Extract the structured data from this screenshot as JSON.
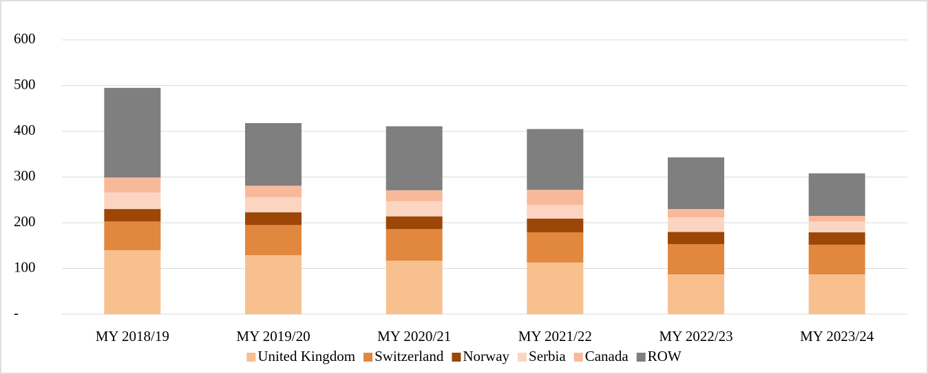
{
  "chart_data": {
    "type": "stacked_bar",
    "categories": [
      "MY 2018/19",
      "MY 2019/20",
      "MY 2020/21",
      "MY 2021/22",
      "MY 2022/23",
      "MY 2023/24"
    ],
    "series": [
      {
        "name": "United Kingdom",
        "color": "#f9c08f",
        "values": [
          140,
          129,
          117,
          113,
          87,
          87
        ]
      },
      {
        "name": "Switzerland",
        "color": "#e2873e",
        "values": [
          63,
          66,
          69,
          66,
          66,
          65
        ]
      },
      {
        "name": "Norway",
        "color": "#9c4708",
        "values": [
          27,
          28,
          28,
          30,
          27,
          27
        ]
      },
      {
        "name": "Serbia",
        "color": "#fbd5c1",
        "values": [
          36,
          33,
          33,
          30,
          32,
          24
        ]
      },
      {
        "name": "Canada",
        "color": "#f8b99a",
        "values": [
          33,
          25,
          24,
          33,
          18,
          12
        ]
      },
      {
        "name": "ROW",
        "color": "#7f7f7f",
        "values": [
          196,
          137,
          140,
          133,
          113,
          93
        ]
      }
    ],
    "ylim": [
      0,
      600
    ],
    "yticks": [
      {
        "value": 0,
        "label": "-"
      },
      100,
      200,
      300,
      400,
      500,
      600
    ],
    "grid": true,
    "legend": "bottom"
  }
}
